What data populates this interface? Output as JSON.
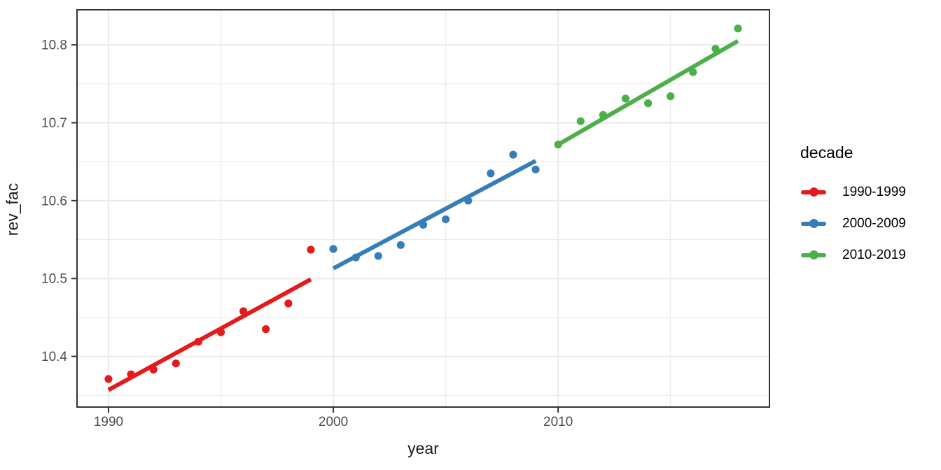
{
  "chart_data": {
    "type": "scatter",
    "title": "",
    "xlabel": "year",
    "ylabel": "rev_fac",
    "xlim": [
      1988.6,
      2019.4
    ],
    "ylim": [
      10.335,
      10.845
    ],
    "x_ticks": [
      1990,
      2000,
      2010
    ],
    "x_minor_ticks": [
      1995,
      2005,
      2015
    ],
    "y_ticks": [
      10.4,
      10.5,
      10.6,
      10.7,
      10.8
    ],
    "y_minor_ticks": [
      10.35,
      10.45,
      10.55,
      10.65,
      10.75
    ],
    "grid": true,
    "panel_background": "#ffffff",
    "grid_color": "#ebebeb",
    "panel_border_color": "#343434",
    "tick_label_color": "#4d4d4d",
    "legend_title": "decade",
    "legend_position": "right",
    "series": [
      {
        "name": "1990-1999",
        "color": "#E41A1C",
        "x": [
          1990,
          1991,
          1992,
          1993,
          1994,
          1995,
          1996,
          1997,
          1998,
          1999
        ],
        "y": [
          10.371,
          10.377,
          10.383,
          10.391,
          10.419,
          10.431,
          10.458,
          10.435,
          10.468,
          10.537
        ],
        "trend": {
          "x1": 1990,
          "y1": 10.357,
          "x2": 1999,
          "y2": 10.499
        }
      },
      {
        "name": "2000-2009",
        "color": "#377EB8",
        "x": [
          2000,
          2001,
          2002,
          2003,
          2004,
          2005,
          2006,
          2007,
          2008,
          2009
        ],
        "y": [
          10.538,
          10.527,
          10.529,
          10.543,
          10.569,
          10.576,
          10.6,
          10.635,
          10.659,
          10.64
        ],
        "trend": {
          "x1": 2000,
          "y1": 10.513,
          "x2": 2009,
          "y2": 10.651
        }
      },
      {
        "name": "2010-2019",
        "color": "#4DAF4A",
        "x": [
          2010,
          2011,
          2012,
          2013,
          2014,
          2015,
          2016,
          2017,
          2018
        ],
        "y": [
          10.672,
          10.702,
          10.71,
          10.731,
          10.725,
          10.734,
          10.765,
          10.795,
          10.821
        ],
        "trend": {
          "x1": 2010,
          "y1": 10.672,
          "x2": 2018,
          "y2": 10.805
        }
      }
    ]
  }
}
